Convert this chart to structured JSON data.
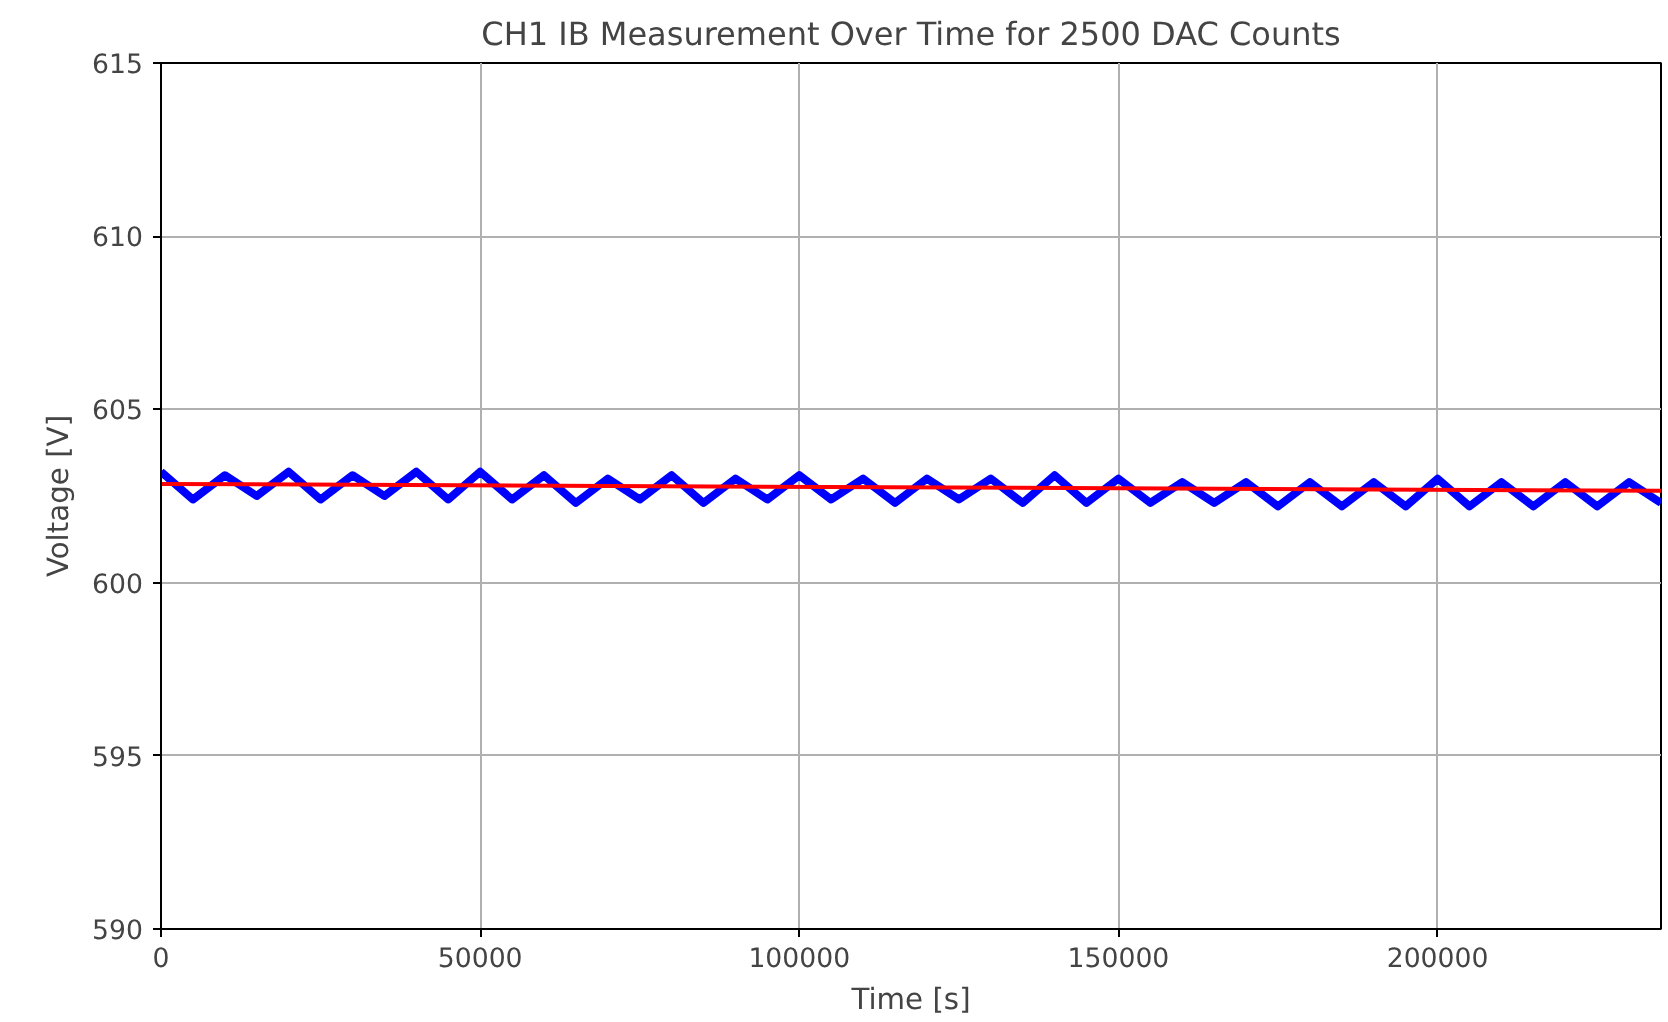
{
  "chart_data": {
    "type": "line",
    "title": "CH1 IB Measurement Over Time for 2500 DAC Counts",
    "xlabel": "Time [s]",
    "ylabel": "Voltage [V]",
    "xlim": [
      0,
      235000
    ],
    "xticks": [
      0,
      50000,
      100000,
      150000,
      200000
    ],
    "ylim": [
      590,
      615
    ],
    "yticks": [
      590,
      595,
      600,
      605,
      610,
      615
    ],
    "grid": true,
    "series": [
      {
        "color": "#0000ff",
        "x": [
          0,
          5000,
          10000,
          15000,
          20000,
          25000,
          30000,
          35000,
          40000,
          45000,
          50000,
          55000,
          60000,
          65000,
          70000,
          75000,
          80000,
          85000,
          90000,
          95000,
          100000,
          105000,
          110000,
          115000,
          120000,
          125000,
          130000,
          135000,
          140000,
          145000,
          150000,
          155000,
          160000,
          165000,
          170000,
          175000,
          180000,
          185000,
          190000,
          195000,
          200000,
          205000,
          210000,
          215000,
          220000,
          225000,
          230000,
          235000
        ],
        "values": [
          603.2,
          602.4,
          603.1,
          602.5,
          603.2,
          602.4,
          603.1,
          602.5,
          603.2,
          602.4,
          603.2,
          602.4,
          603.1,
          602.3,
          603.0,
          602.4,
          603.1,
          602.3,
          603.0,
          602.4,
          603.1,
          602.4,
          603.0,
          602.3,
          603.0,
          602.4,
          603.0,
          602.3,
          603.1,
          602.3,
          603.0,
          602.3,
          602.9,
          602.3,
          602.9,
          602.2,
          602.9,
          602.2,
          602.9,
          602.2,
          603.0,
          602.2,
          602.9,
          602.2,
          602.9,
          602.2,
          602.9,
          602.3
        ]
      },
      {
        "color": "#ff0000",
        "x": [
          0,
          235000
        ],
        "values": [
          602.85,
          602.65
        ]
      }
    ]
  }
}
